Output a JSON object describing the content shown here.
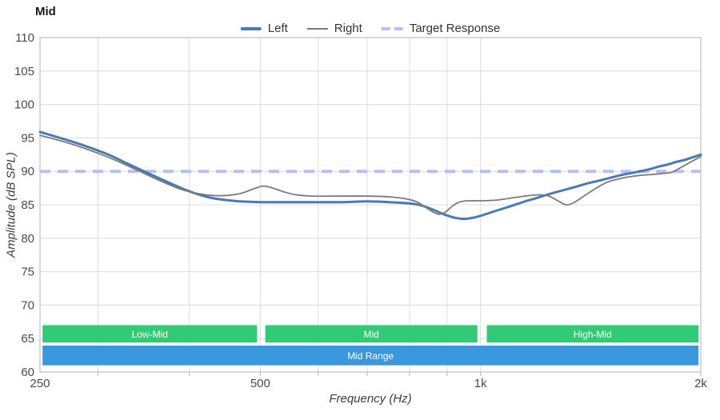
{
  "header": {
    "title": "Mid"
  },
  "legend": {
    "items": [
      {
        "label": "Left",
        "color": "#4b79b4",
        "style": "solid-thick"
      },
      {
        "label": "Right",
        "color": "#7b7b7b",
        "style": "solid-thin"
      },
      {
        "label": "Target Response",
        "color": "#b4c0f0",
        "style": "dashed"
      }
    ]
  },
  "chart_data": {
    "type": "line",
    "title": "Mid",
    "xlabel": "Frequency (Hz)",
    "ylabel": "Amplitude (dB SPL)",
    "x_scale": "log",
    "xlim": [
      250,
      2000
    ],
    "ylim": [
      60,
      110
    ],
    "grid": true,
    "legend_position": "top-center",
    "x_ticks": [
      {
        "hz": 250,
        "label": "250"
      },
      {
        "hz": 500,
        "label": "500"
      },
      {
        "hz": 1000,
        "label": "1k"
      },
      {
        "hz": 2000,
        "label": "2k"
      }
    ],
    "x_gridlines": [
      300,
      400,
      500,
      600,
      700,
      800,
      900,
      1000
    ],
    "y_ticks": [
      60,
      65,
      70,
      75,
      80,
      85,
      90,
      95,
      100,
      105,
      110
    ],
    "y_gridlines": [
      65,
      70,
      75,
      80,
      85,
      90,
      95,
      100,
      105
    ],
    "target_response": {
      "label": "Target Response",
      "value": 90,
      "color": "#b4c0f0",
      "dash": [
        13,
        9
      ],
      "width": 4
    },
    "series": [
      {
        "name": "Left",
        "color": "#4b79b4",
        "width": 3,
        "points": [
          [
            250,
            95.9
          ],
          [
            270,
            94.8
          ],
          [
            290,
            93.7
          ],
          [
            310,
            92.5
          ],
          [
            330,
            91.1
          ],
          [
            350,
            89.8
          ],
          [
            370,
            88.6
          ],
          [
            390,
            87.5
          ],
          [
            410,
            86.6
          ],
          [
            430,
            86.0
          ],
          [
            450,
            85.7
          ],
          [
            470,
            85.5
          ],
          [
            500,
            85.4
          ],
          [
            550,
            85.4
          ],
          [
            600,
            85.4
          ],
          [
            650,
            85.4
          ],
          [
            700,
            85.5
          ],
          [
            750,
            85.4
          ],
          [
            800,
            85.2
          ],
          [
            830,
            84.9
          ],
          [
            860,
            84.3
          ],
          [
            890,
            83.6
          ],
          [
            920,
            83.1
          ],
          [
            950,
            82.9
          ],
          [
            980,
            83.1
          ],
          [
            1010,
            83.5
          ],
          [
            1050,
            84.1
          ],
          [
            1100,
            84.8
          ],
          [
            1150,
            85.5
          ],
          [
            1200,
            86.1
          ],
          [
            1250,
            86.7
          ],
          [
            1300,
            87.2
          ],
          [
            1350,
            87.7
          ],
          [
            1400,
            88.2
          ],
          [
            1450,
            88.6
          ],
          [
            1500,
            89.0
          ],
          [
            1550,
            89.4
          ],
          [
            1600,
            89.7
          ],
          [
            1650,
            90.0
          ],
          [
            1700,
            90.3
          ],
          [
            1750,
            90.7
          ],
          [
            1800,
            91.0
          ],
          [
            1850,
            91.4
          ],
          [
            1900,
            91.7
          ],
          [
            1950,
            92.1
          ],
          [
            2000,
            92.5
          ]
        ]
      },
      {
        "name": "Right",
        "color": "#7b7b7b",
        "width": 1.8,
        "points": [
          [
            250,
            95.4
          ],
          [
            270,
            94.4
          ],
          [
            290,
            93.3
          ],
          [
            310,
            92.1
          ],
          [
            330,
            90.8
          ],
          [
            350,
            89.5
          ],
          [
            370,
            88.3
          ],
          [
            390,
            87.3
          ],
          [
            410,
            86.7
          ],
          [
            430,
            86.4
          ],
          [
            450,
            86.4
          ],
          [
            470,
            86.7
          ],
          [
            490,
            87.4
          ],
          [
            505,
            87.8
          ],
          [
            520,
            87.5
          ],
          [
            540,
            86.9
          ],
          [
            560,
            86.5
          ],
          [
            590,
            86.3
          ],
          [
            650,
            86.3
          ],
          [
            700,
            86.3
          ],
          [
            750,
            86.2
          ],
          [
            790,
            85.9
          ],
          [
            820,
            85.4
          ],
          [
            850,
            84.3
          ],
          [
            875,
            83.6
          ],
          [
            895,
            83.9
          ],
          [
            915,
            84.8
          ],
          [
            935,
            85.4
          ],
          [
            960,
            85.6
          ],
          [
            1000,
            85.6
          ],
          [
            1050,
            85.7
          ],
          [
            1100,
            86.0
          ],
          [
            1150,
            86.3
          ],
          [
            1200,
            86.5
          ],
          [
            1240,
            86.3
          ],
          [
            1280,
            85.5
          ],
          [
            1310,
            85.0
          ],
          [
            1340,
            85.3
          ],
          [
            1380,
            86.2
          ],
          [
            1420,
            87.1
          ],
          [
            1460,
            87.9
          ],
          [
            1500,
            88.5
          ],
          [
            1550,
            88.9
          ],
          [
            1600,
            89.2
          ],
          [
            1650,
            89.4
          ],
          [
            1700,
            89.5
          ],
          [
            1780,
            89.7
          ],
          [
            1830,
            89.9
          ],
          [
            1880,
            90.6
          ],
          [
            1930,
            91.3
          ],
          [
            2000,
            92.2
          ]
        ]
      }
    ],
    "bands": [
      {
        "color": "#30cb74",
        "text_color": "#ffffff",
        "db_range": [
          64.4,
          67.0
        ],
        "segments": [
          {
            "label": "Low-Mid",
            "from_hz": 252,
            "to_hz": 495
          },
          {
            "label": "Mid",
            "from_hz": 508,
            "to_hz": 990
          },
          {
            "label": "High-Mid",
            "from_hz": 1020,
            "to_hz": 1985
          }
        ]
      },
      {
        "color": "#3b97dd",
        "text_color": "#ffffff",
        "db_range": [
          61.0,
          63.95
        ],
        "segments": [
          {
            "label": "Mid Range",
            "from_hz": 252,
            "to_hz": 1985
          }
        ]
      }
    ],
    "colors": {
      "gridline": "#dcdcdc",
      "border": "#b3b3b3",
      "tick_text": "#4a4a4a"
    }
  }
}
